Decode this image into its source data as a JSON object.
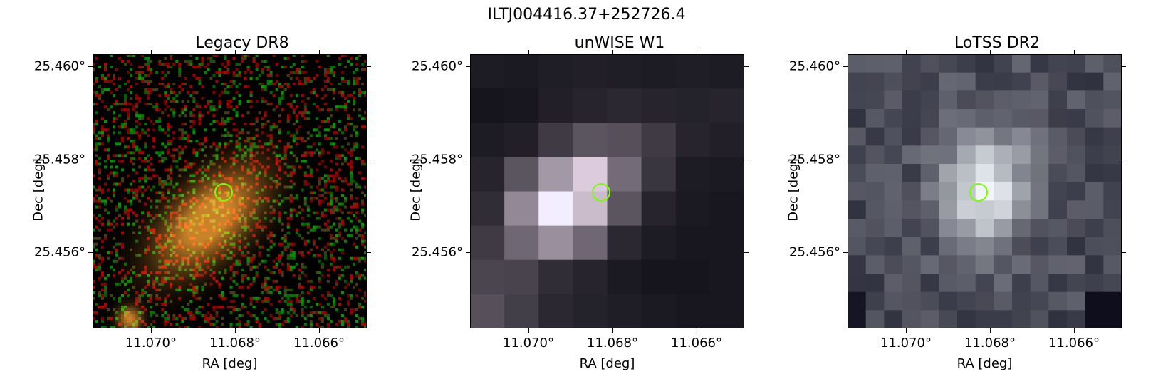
{
  "title": "ILTJ004416.37+252726.4",
  "panels": [
    {
      "title": "Legacy DR8",
      "xlabel": "RA [deg]",
      "ylabel": "Dec [deg]",
      "xticks": [
        "11.070°",
        "11.068°",
        "11.066°"
      ],
      "yticks": [
        "25.460°",
        "25.458°",
        "25.456°"
      ]
    },
    {
      "title": "unWISE W1",
      "xlabel": "RA [deg]",
      "ylabel": "Dec [deg]",
      "xticks": [
        "11.070°",
        "11.068°",
        "11.066°"
      ],
      "yticks": [
        "25.460°",
        "25.458°",
        "25.456°"
      ]
    },
    {
      "title": "LoTSS DR2",
      "xlabel": "RA [deg]",
      "ylabel": "Dec [deg]",
      "xticks": [
        "11.070°",
        "11.068°",
        "11.066°"
      ],
      "yticks": [
        "25.460°",
        "25.458°",
        "25.456°"
      ]
    }
  ],
  "colors": {
    "marker": "#7CFC00"
  }
}
